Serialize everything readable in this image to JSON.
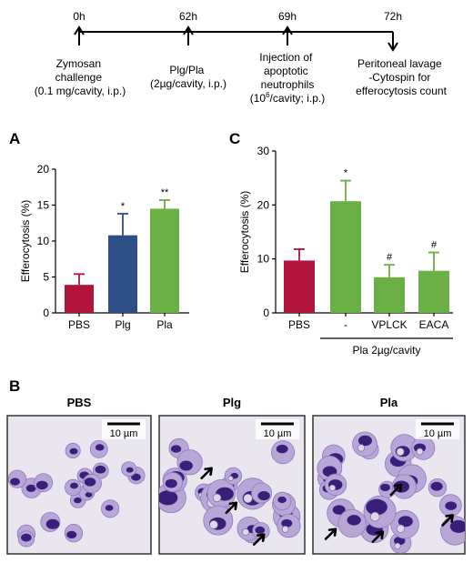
{
  "timeline": {
    "times": [
      "0h",
      "62h",
      "69h",
      "72h"
    ],
    "events": [
      [
        "Zymosan",
        "challenge",
        "(0.1 mg/cavity, i.p.)"
      ],
      [
        "Plg/Pla",
        "(2µg/cavity, i.p.)"
      ],
      [
        "Injection of",
        "apoptotic",
        "neutrophils",
        "(10",
        "6",
        "/cavity; i.p.)"
      ],
      [
        "Peritoneal lavage",
        "-Cytospin for",
        "efferocytosis count"
      ]
    ]
  },
  "panel_labels": {
    "a": "A",
    "b": "B",
    "c": "C"
  },
  "chart_data": [
    {
      "type": "bar",
      "panel": "A",
      "categories": [
        "PBS",
        "Plg",
        "Pla"
      ],
      "values": [
        3.9,
        10.8,
        14.5
      ],
      "errors": [
        1.5,
        3.0,
        1.2
      ],
      "significance": [
        "",
        "*",
        "**"
      ],
      "colors": [
        "#b0143a",
        "#2d4e86",
        "#6bb045"
      ],
      "ylabel": "Efferocytosis (%)",
      "ylim": [
        0,
        20
      ],
      "yticks": [
        0,
        5,
        10,
        15,
        20
      ]
    },
    {
      "type": "bar",
      "panel": "C",
      "categories": [
        "PBS",
        "-",
        "VPLCK",
        "EACA"
      ],
      "values": [
        9.7,
        20.7,
        6.6,
        7.8
      ],
      "errors": [
        2.1,
        3.8,
        2.3,
        3.4
      ],
      "significance": [
        "",
        "*",
        "#",
        "#"
      ],
      "colors": [
        "#b0143a",
        "#6bb045",
        "#6bb045",
        "#6bb045"
      ],
      "ylabel": "Efferocytosis (%)",
      "ylim": [
        0,
        30
      ],
      "yticks": [
        0,
        10,
        20,
        30
      ],
      "group_label": "Pla 2µg/cavity"
    }
  ],
  "micrographs": [
    {
      "title": "PBS",
      "scale": "10 µm",
      "arrows": 0
    },
    {
      "title": "Plg",
      "scale": "10 µm",
      "arrows": 3
    },
    {
      "title": "Pla",
      "scale": "10 µm",
      "arrows": 4
    }
  ],
  "colors": {
    "cytoplasm": "#b7a6d6",
    "nucleus": "#3a1f7a",
    "background": "#e9e6ef"
  }
}
